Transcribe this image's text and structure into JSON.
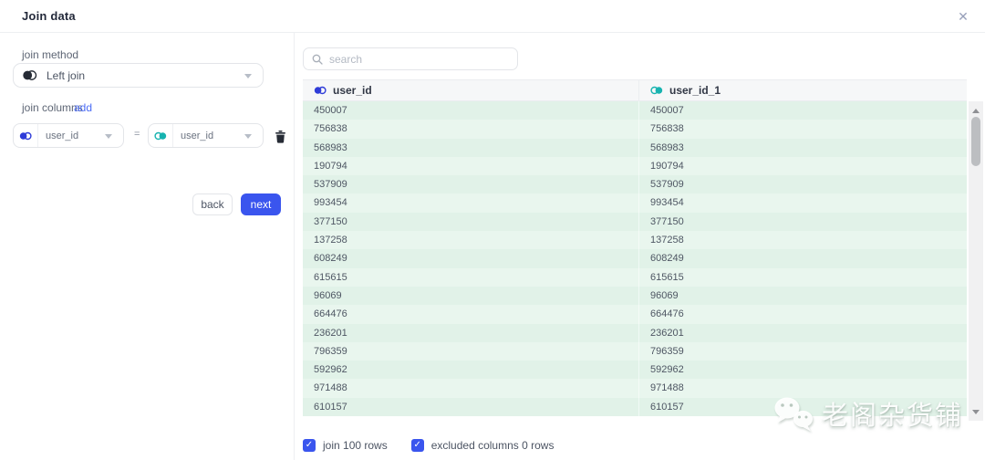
{
  "header": {
    "title": "Join data",
    "close_icon": "✕"
  },
  "left_panel": {
    "join_method": {
      "label": "join method",
      "value": "Left join"
    },
    "join_columns": {
      "label": "join columns",
      "add_link": "add",
      "pair": {
        "left_column": "user_id",
        "operator": "=",
        "right_column": "user_id"
      }
    },
    "buttons": {
      "back": "back",
      "next": "next"
    }
  },
  "right_panel": {
    "search": {
      "placeholder": "search"
    },
    "table": {
      "columns": [
        {
          "label": "user_id"
        },
        {
          "label": "user_id_1"
        }
      ],
      "rows": [
        [
          "450007",
          "450007"
        ],
        [
          "756838",
          "756838"
        ],
        [
          "568983",
          "568983"
        ],
        [
          "190794",
          "190794"
        ],
        [
          "537909",
          "537909"
        ],
        [
          "993454",
          "993454"
        ],
        [
          "377150",
          "377150"
        ],
        [
          "137258",
          "137258"
        ],
        [
          "608249",
          "608249"
        ],
        [
          "615615",
          "615615"
        ],
        [
          "96069",
          "96069"
        ],
        [
          "664476",
          "664476"
        ],
        [
          "236201",
          "236201"
        ],
        [
          "796359",
          "796359"
        ],
        [
          "592962",
          "592962"
        ],
        [
          "971488",
          "971488"
        ],
        [
          "610157",
          "610157"
        ]
      ]
    },
    "footer": {
      "checkboxes": [
        {
          "checked": true,
          "check_icon": "✓",
          "label": "join 100 rows"
        },
        {
          "checked": true,
          "check_icon": "✓",
          "label": "excluded columns 0 rows"
        }
      ]
    }
  },
  "watermark": {
    "text": "老阁杂货铺"
  },
  "colors": {
    "accent_blue": "#3a55ee",
    "link_blue": "#4a6bf5",
    "venn_blue": "#2f3cd8",
    "venn_teal": "#17b3b0",
    "row_green_dark": "#e1f2e8",
    "row_green_light": "#e9f6ee",
    "header_gray": "#f6f7f8"
  }
}
